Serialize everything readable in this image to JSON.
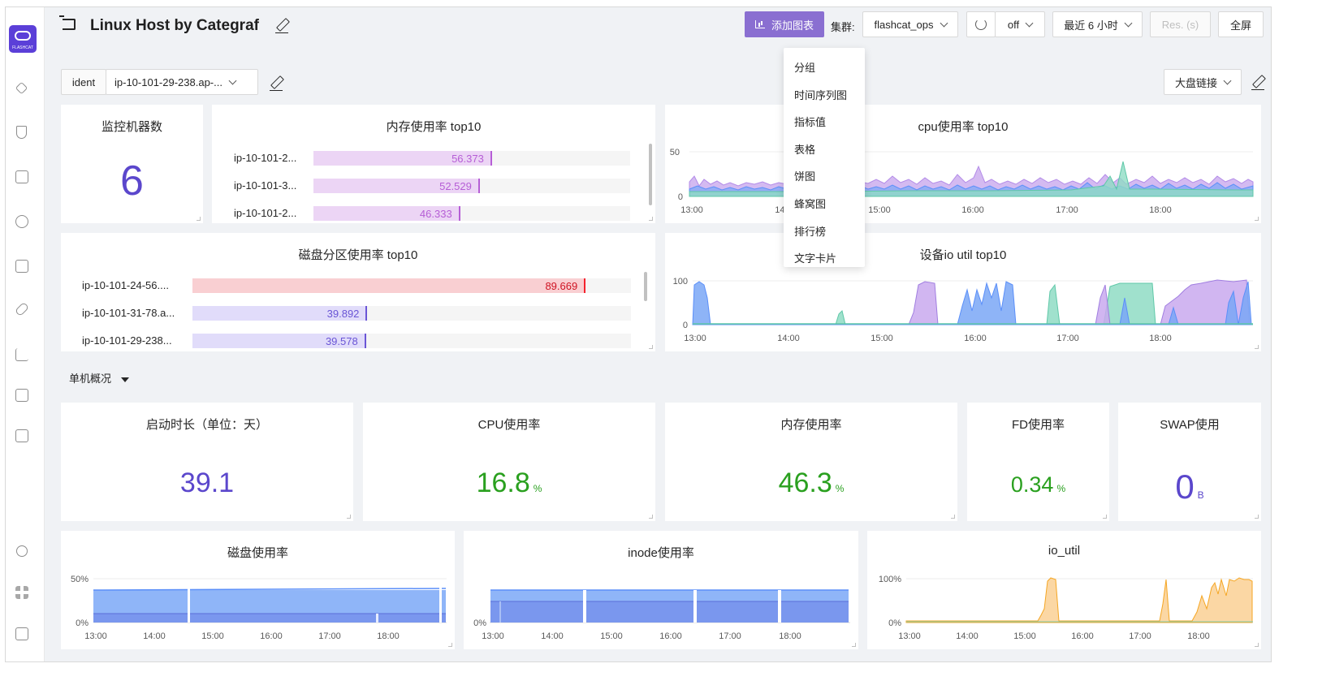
{
  "dashboard": {
    "title": "Linux Host by Categraf"
  },
  "toolbar": {
    "add_chart_label": "添加图表",
    "cluster_label": "集群:",
    "cluster_value": "flashcat_ops",
    "refresh_value": "off",
    "time_range": "最近 6 小时",
    "resolution_placeholder": "Res. (s)",
    "fullscreen_label": "全屏"
  },
  "add_menu": {
    "items": [
      "分组",
      "时间序列图",
      "指标值",
      "表格",
      "饼图",
      "蜂窝图",
      "排行榜",
      "文字卡片"
    ]
  },
  "variables": {
    "ident_label": "ident",
    "ident_value": "ip-10-101-29-238.ap-...",
    "links_label": "大盘链接"
  },
  "logo": {
    "text": "FLASHCAT"
  },
  "colors": {
    "accent": "#8a6fd1",
    "stat_purple": "#5b47cc",
    "stat_green": "#2aa01f",
    "series_purple": "#b38be8",
    "series_blue": "#5b8ff9",
    "series_teal": "#7fd1b9",
    "series_orange": "#fac47a",
    "bar_red": "#f5222d"
  },
  "panels": {
    "host_count": {
      "title": "监控机器数",
      "value": "6"
    },
    "mem_top10": {
      "title": "内存使用率 top10",
      "max": 100,
      "rows": [
        {
          "label": "ip-10-101-2...",
          "value": 56.373,
          "display": "56.373"
        },
        {
          "label": "ip-10-101-3...",
          "value": 52.529,
          "display": "52.529"
        },
        {
          "label": "ip-10-101-2...",
          "value": 46.333,
          "display": "46.333"
        }
      ]
    },
    "cpu_top10": {
      "title": "cpu使用率 top10",
      "y_ticks": [
        "50",
        "0"
      ],
      "x_ticks": [
        "13:00",
        "14:00",
        "15:00",
        "16:00",
        "17:00",
        "18:00"
      ]
    },
    "disk_top10": {
      "title": "磁盘分区使用率 top10",
      "max": 100,
      "rows": [
        {
          "label": "ip-10-101-24-56....",
          "value": 89.669,
          "display": "89.669",
          "level": "high"
        },
        {
          "label": "ip-10-101-31-78.a...",
          "value": 39.892,
          "display": "39.892",
          "level": "normal"
        },
        {
          "label": "ip-10-101-29-238...",
          "value": 39.578,
          "display": "39.578",
          "level": "normal"
        }
      ]
    },
    "io_top10": {
      "title": "设备io util top10",
      "y_ticks": [
        "100",
        "0"
      ],
      "x_ticks": [
        "13:00",
        "14:00",
        "15:00",
        "16:00",
        "17:00",
        "18:00"
      ]
    },
    "section": {
      "label": "单机概况"
    },
    "uptime": {
      "title": "启动时长（单位：天）",
      "value": "39.1",
      "unit": ""
    },
    "cpu_usage": {
      "title": "CPU使用率",
      "value": "16.8",
      "unit": "%"
    },
    "mem_usage": {
      "title": "内存使用率",
      "value": "46.3",
      "unit": "%"
    },
    "fd_usage": {
      "title": "FD使用率",
      "value": "0.34",
      "unit": "%"
    },
    "swap_usage": {
      "title": "SWAP使用",
      "value": "0",
      "unit": "B"
    },
    "disk_usage": {
      "title": "磁盘使用率",
      "y_ticks": [
        "50%",
        "0%"
      ],
      "x_ticks": [
        "13:00",
        "14:00",
        "15:00",
        "16:00",
        "17:00",
        "18:00"
      ]
    },
    "inode_usage": {
      "title": "inode使用率",
      "y_ticks": [
        "0%"
      ],
      "x_ticks": [
        "13:00",
        "14:00",
        "15:00",
        "16:00",
        "17:00",
        "18:00"
      ]
    },
    "io_util": {
      "title": "io_util",
      "y_ticks": [
        "100%",
        "0%"
      ],
      "x_ticks": [
        "13:00",
        "14:00",
        "15:00",
        "16:00",
        "17:00",
        "18:00"
      ]
    }
  }
}
